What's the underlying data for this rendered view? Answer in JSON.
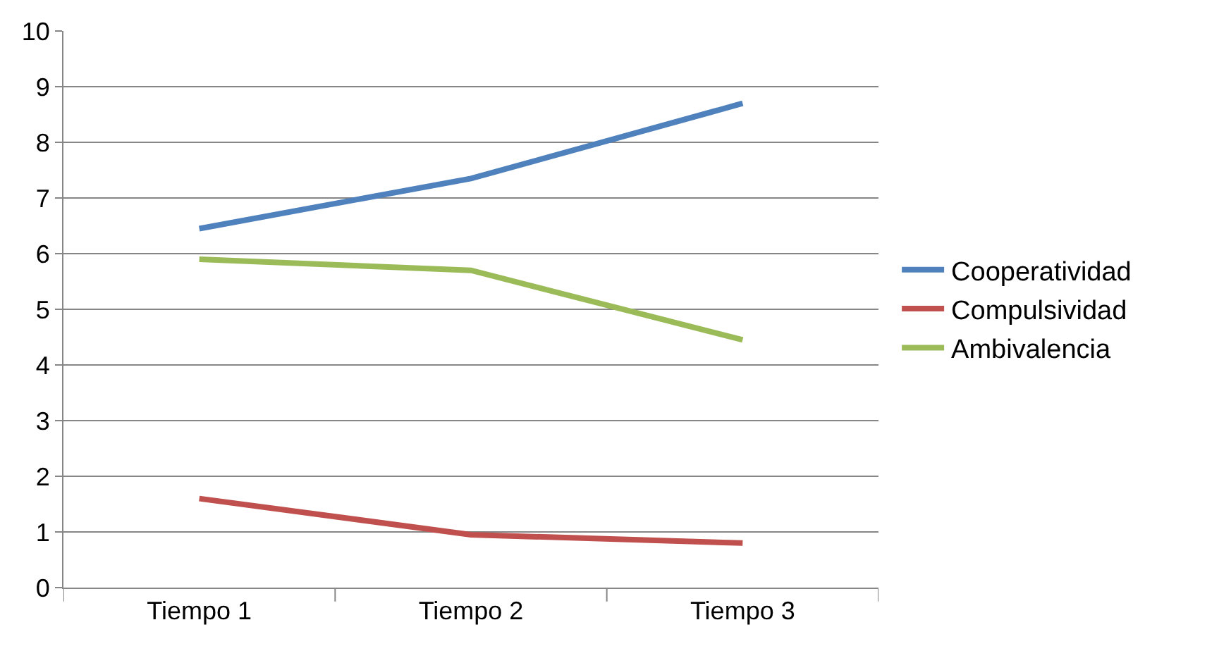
{
  "chart_data": {
    "type": "line",
    "categories": [
      "Tiempo 1",
      "Tiempo 2",
      "Tiempo 3"
    ],
    "series": [
      {
        "name": "Cooperatividad",
        "color": "#4f81bd",
        "values": [
          6.45,
          7.35,
          8.7
        ]
      },
      {
        "name": "Compulsividad",
        "color": "#c0504d",
        "values": [
          1.6,
          0.95,
          0.8
        ]
      },
      {
        "name": "Ambivalencia",
        "color": "#9bbb59",
        "values": [
          5.9,
          5.7,
          4.45
        ]
      }
    ],
    "ylim": [
      0,
      10
    ],
    "yticks": [
      0,
      1,
      2,
      3,
      4,
      5,
      6,
      7,
      8,
      9,
      10
    ],
    "grid": "y",
    "legend": "right",
    "marker": "none",
    "line_style": "solid"
  }
}
